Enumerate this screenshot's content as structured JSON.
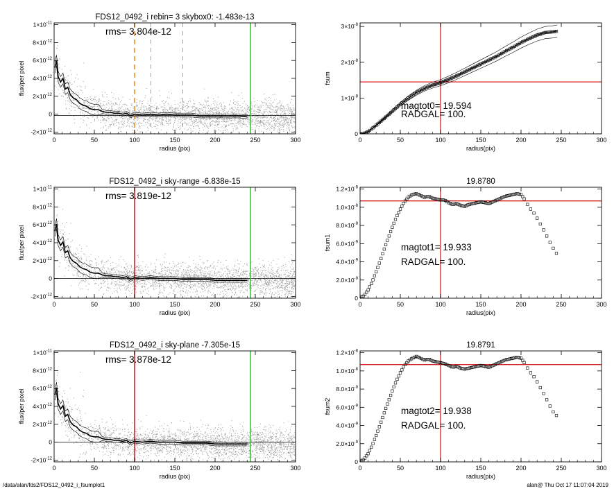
{
  "footer": {
    "path": "/data/alan/fds2/FDS12_0492_i_fsumplot1",
    "stamp": "alan@  Thu Oct 17 11:07:04 2019"
  },
  "colors": {
    "background": "#ffffff",
    "scatter": "#9a9a9a",
    "profile": "#000000",
    "orange_marker": "#f28c28",
    "red_marker": "#d42020",
    "green_marker": "#33cc33"
  },
  "chart_data": [
    {
      "type": "scatter",
      "title": "FDS12_0492_i rebin= 3    skybox0: -1.483e-13",
      "annotation": "rms= 3.804e-12",
      "xlabel": "radius (pix)",
      "ylabel": "flux/per pixel",
      "xlim": [
        0,
        300
      ],
      "ylim": [
        -2.2e-12,
        1.02e-11
      ],
      "xticks": [
        0,
        50,
        100,
        150,
        200,
        250,
        300
      ],
      "yticks": [
        {
          "v": 1e-11,
          "label": "1×10-11"
        },
        {
          "v": 8e-12,
          "label": "8×10-12"
        },
        {
          "v": 6e-12,
          "label": "6×10-12"
        },
        {
          "v": 4e-12,
          "label": "4×10-12"
        },
        {
          "v": 2e-12,
          "label": "2×10-12"
        },
        {
          "v": 0,
          "label": "0"
        },
        {
          "v": -2e-12,
          "label": "-2×10-12"
        }
      ],
      "baseline": -1.483e-13,
      "vlines": [
        {
          "x": 100,
          "color": "orange",
          "style": "dashed"
        },
        {
          "x": 120,
          "color": "gray",
          "style": "dashed"
        },
        {
          "x": 160,
          "color": "gray",
          "style": "dashed"
        },
        {
          "x": 244,
          "color": "green",
          "style": "solid"
        }
      ],
      "profile": {
        "x": [
          1,
          3,
          5,
          8,
          11,
          14,
          17,
          20,
          24,
          28,
          32,
          36,
          40,
          45,
          50,
          55,
          60,
          65,
          70,
          75,
          80,
          85,
          90,
          95,
          100,
          110,
          120,
          130,
          140,
          150,
          160,
          170,
          180,
          190,
          200,
          210,
          220,
          230,
          240
        ],
        "y": [
          5.2e-12,
          6e-12,
          4.2e-12,
          3.6e-12,
          4e-12,
          2.8e-12,
          3e-12,
          2.2e-12,
          1.8e-12,
          1.6e-12,
          1.2e-12,
          1e-12,
          9e-13,
          6e-13,
          5e-13,
          5e-13,
          3e-13,
          2e-13,
          2e-13,
          1e-13,
          1e-13,
          0,
          1e-13,
          -2e-13,
          0,
          -1e-13,
          0,
          -1e-13,
          0,
          -1e-13,
          -1e-13,
          -1e-13,
          -2e-13,
          -2e-13,
          -2e-13,
          -2e-13,
          -2e-13,
          -2e-13,
          -3e-13
        ]
      }
    },
    {
      "type": "line",
      "title": "",
      "annotation_lines": [
        "magtot0=  19.594",
        "RADGAL=    100."
      ],
      "xlabel": "radius(pix)",
      "ylabel": "fsum",
      "xlim": [
        0,
        300
      ],
      "ylim": [
        0,
        3.1e-08
      ],
      "xticks": [
        0,
        50,
        100,
        150,
        200,
        250,
        300
      ],
      "yticks": [
        {
          "v": 3e-08,
          "label": "3×10-8"
        },
        {
          "v": 2e-08,
          "label": "2×10-8"
        },
        {
          "v": 1e-08,
          "label": "1×10-8"
        },
        {
          "v": 0,
          "label": "0"
        }
      ],
      "hline": 1.45e-08,
      "vline": 100,
      "envelope": 0.06,
      "curve": {
        "x": [
          0,
          5,
          10,
          20,
          30,
          40,
          50,
          60,
          70,
          80,
          90,
          100,
          110,
          120,
          130,
          140,
          150,
          160,
          170,
          180,
          190,
          200,
          210,
          220,
          230,
          240,
          245
        ],
        "y": [
          0,
          1.5e-10,
          6e-10,
          2.4e-09,
          4.3e-09,
          6.3e-09,
          8.3e-09,
          1e-08,
          1.15e-08,
          1.27e-08,
          1.36e-08,
          1.43e-08,
          1.52e-08,
          1.62e-08,
          1.73e-08,
          1.84e-08,
          1.95e-08,
          2.06e-08,
          2.17e-08,
          2.3e-08,
          2.42e-08,
          2.55e-08,
          2.66e-08,
          2.76e-08,
          2.83e-08,
          2.85e-08,
          2.87e-08
        ]
      }
    },
    {
      "type": "scatter",
      "title": "FDS12_0492_i sky-range -6.838e-15",
      "annotation": "rms= 3.819e-12",
      "xlabel": "radius (pix)",
      "ylabel": "flux/per pixel",
      "xlim": [
        0,
        300
      ],
      "ylim": [
        -2.2e-12,
        1.02e-11
      ],
      "xticks": [
        0,
        50,
        100,
        150,
        200,
        250,
        300
      ],
      "yticks": [
        {
          "v": 1e-11,
          "label": "1×10-11"
        },
        {
          "v": 8e-12,
          "label": "8×10-12"
        },
        {
          "v": 6e-12,
          "label": "6×10-12"
        },
        {
          "v": 4e-12,
          "label": "4×10-12"
        },
        {
          "v": 2e-12,
          "label": "2×10-12"
        },
        {
          "v": 0,
          "label": "0"
        },
        {
          "v": -2e-12,
          "label": "-2×10-12"
        }
      ],
      "baseline": 0,
      "vlines": [
        {
          "x": 100,
          "color": "red",
          "style": "solid"
        },
        {
          "x": 244,
          "color": "green",
          "style": "solid"
        }
      ],
      "profile": {
        "x": [
          1,
          3,
          5,
          8,
          11,
          14,
          17,
          20,
          24,
          28,
          32,
          36,
          40,
          45,
          50,
          55,
          60,
          65,
          70,
          75,
          80,
          85,
          90,
          95,
          100,
          110,
          120,
          130,
          140,
          150,
          160,
          170,
          180,
          190,
          200,
          210,
          220,
          230,
          240
        ],
        "y": [
          5.3e-12,
          6.1e-12,
          4.3e-12,
          3.7e-12,
          4.1e-12,
          2.9e-12,
          3.1e-12,
          2.3e-12,
          1.9e-12,
          1.7e-12,
          1.3e-12,
          1.1e-12,
          1e-12,
          7e-13,
          6e-13,
          6e-13,
          4e-13,
          3e-13,
          3e-13,
          2e-13,
          2e-13,
          1e-13,
          2e-13,
          -1e-13,
          1e-13,
          0,
          1e-13,
          0,
          0,
          0,
          -1e-13,
          -1e-13,
          -1e-13,
          -1e-13,
          -2e-13,
          -2e-13,
          -2e-13,
          -2e-13,
          -2e-13
        ]
      }
    },
    {
      "type": "scatter",
      "title": "19.8780",
      "annotation_lines": [
        "magtot1=  19.933",
        "RADGAL=    100."
      ],
      "xlabel": "radius(pix)",
      "ylabel": "fsum1",
      "xlim": [
        0,
        300
      ],
      "ylim": [
        0,
        1.22e-08
      ],
      "xticks": [
        0,
        50,
        100,
        150,
        200,
        250,
        300
      ],
      "yticks": [
        {
          "v": 1.2e-08,
          "label": "1.2×10-8"
        },
        {
          "v": 1e-08,
          "label": "1.0×10-8"
        },
        {
          "v": 8e-09,
          "label": "8.0×10-9"
        },
        {
          "v": 6e-09,
          "label": "6.0×10-9"
        },
        {
          "v": 4e-09,
          "label": "4.0×10-9"
        },
        {
          "v": 2e-09,
          "label": "2.0×10-9"
        },
        {
          "v": 0,
          "label": "0"
        }
      ],
      "hline": 1.07e-08,
      "vline": 100,
      "curve": {
        "x": [
          0,
          5,
          10,
          15,
          20,
          25,
          30,
          35,
          40,
          45,
          50,
          55,
          60,
          65,
          70,
          75,
          80,
          85,
          90,
          95,
          100,
          105,
          110,
          115,
          120,
          125,
          130,
          135,
          140,
          145,
          150,
          155,
          160,
          165,
          170,
          175,
          180,
          185,
          190,
          195,
          200,
          205,
          210,
          215,
          220,
          225,
          230,
          235,
          240,
          245
        ],
        "y": [
          0,
          3e-10,
          9e-10,
          1.8e-09,
          2.9e-09,
          4.1e-09,
          5.4e-09,
          6.6e-09,
          7.8e-09,
          8.9e-09,
          9.8e-09,
          1.06e-08,
          1.11e-08,
          1.14e-08,
          1.15e-08,
          1.13e-08,
          1.11e-08,
          1.12e-08,
          1.1e-08,
          1.09e-08,
          1.08e-08,
          1.08e-08,
          1.05e-08,
          1.03e-08,
          1.04e-08,
          1.02e-08,
          1.01e-08,
          1.03e-08,
          1.04e-08,
          1.05e-08,
          1.06e-08,
          1.05e-08,
          1.04e-08,
          1.06e-08,
          1.08e-08,
          1.1e-08,
          1.12e-08,
          1.13e-08,
          1.14e-08,
          1.15e-08,
          1.14e-08,
          1.08e-08,
          1e-08,
          9.5e-09,
          8.8e-09,
          8e-09,
          7.2e-09,
          6.3e-09,
          5.5e-09,
          4.8e-09
        ]
      }
    },
    {
      "type": "scatter",
      "title": "FDS12_0492_i sky-plane -7.305e-15",
      "annotation": "rms= 3.878e-12",
      "xlabel": "radius (pix)",
      "ylabel": "flux/per pixel",
      "xlim": [
        0,
        300
      ],
      "ylim": [
        -2.2e-12,
        1.02e-11
      ],
      "xticks": [
        0,
        50,
        100,
        150,
        200,
        250,
        300
      ],
      "yticks": [
        {
          "v": 1e-11,
          "label": "1×10-11"
        },
        {
          "v": 8e-12,
          "label": "8×10-12"
        },
        {
          "v": 6e-12,
          "label": "6×10-12"
        },
        {
          "v": 4e-12,
          "label": "4×10-12"
        },
        {
          "v": 2e-12,
          "label": "2×10-12"
        },
        {
          "v": 0,
          "label": "0"
        },
        {
          "v": -2e-12,
          "label": "-2×10-12"
        }
      ],
      "baseline": 0,
      "vlines": [
        {
          "x": 100,
          "color": "red",
          "style": "solid"
        },
        {
          "x": 244,
          "color": "green",
          "style": "solid"
        }
      ],
      "profile": {
        "x": [
          1,
          3,
          5,
          8,
          11,
          14,
          17,
          20,
          24,
          28,
          32,
          36,
          40,
          45,
          50,
          55,
          60,
          65,
          70,
          75,
          80,
          85,
          90,
          95,
          100,
          110,
          120,
          130,
          140,
          150,
          160,
          170,
          180,
          190,
          200,
          210,
          220,
          230,
          240
        ],
        "y": [
          5.3e-12,
          6.1e-12,
          4.3e-12,
          3.7e-12,
          4.1e-12,
          2.9e-12,
          3.1e-12,
          2.3e-12,
          1.9e-12,
          1.7e-12,
          1.3e-12,
          1.1e-12,
          1e-12,
          7e-13,
          6e-13,
          6e-13,
          4e-13,
          3e-13,
          3e-13,
          2e-13,
          2e-13,
          1e-13,
          2e-13,
          -1e-13,
          1e-13,
          0,
          1e-13,
          0,
          0,
          0,
          -1e-13,
          -1e-13,
          -1e-13,
          -1e-13,
          -2e-13,
          -2e-13,
          -2e-13,
          -2e-13,
          -2e-13
        ]
      }
    },
    {
      "type": "scatter",
      "title": "19.8791",
      "annotation_lines": [
        "magtot2=  19.938",
        "RADGAL=    100."
      ],
      "xlabel": "radius(pix)",
      "ylabel": "fsum2",
      "xlim": [
        0,
        300
      ],
      "ylim": [
        0,
        1.22e-08
      ],
      "xticks": [
        0,
        50,
        100,
        150,
        200,
        250,
        300
      ],
      "yticks": [
        {
          "v": 1.2e-08,
          "label": "1.2×10-8"
        },
        {
          "v": 1e-08,
          "label": "1.0×10-8"
        },
        {
          "v": 8e-09,
          "label": "8.0×10-9"
        },
        {
          "v": 6e-09,
          "label": "6.0×10-9"
        },
        {
          "v": 4e-09,
          "label": "4.0×10-9"
        },
        {
          "v": 2e-09,
          "label": "2.0×10-9"
        },
        {
          "v": 0,
          "label": "0"
        }
      ],
      "hline": 1.07e-08,
      "vline": 100,
      "curve": {
        "x": [
          0,
          5,
          10,
          15,
          20,
          25,
          30,
          35,
          40,
          45,
          50,
          55,
          60,
          65,
          70,
          75,
          80,
          85,
          90,
          95,
          100,
          105,
          110,
          115,
          120,
          125,
          130,
          135,
          140,
          145,
          150,
          155,
          160,
          165,
          170,
          175,
          180,
          185,
          190,
          195,
          200,
          205,
          210,
          215,
          220,
          225,
          230,
          235,
          240,
          245
        ],
        "y": [
          0,
          3e-10,
          9e-10,
          1.8e-09,
          2.9e-09,
          4.1e-09,
          5.4e-09,
          6.6e-09,
          7.8e-09,
          8.9e-09,
          9.8e-09,
          1.06e-08,
          1.11e-08,
          1.14e-08,
          1.16e-08,
          1.14e-08,
          1.12e-08,
          1.13e-08,
          1.11e-08,
          1.1e-08,
          1.09e-08,
          1.08e-08,
          1.06e-08,
          1.04e-08,
          1.05e-08,
          1.03e-08,
          1.02e-08,
          1.03e-08,
          1.04e-08,
          1.05e-08,
          1.06e-08,
          1.05e-08,
          1.04e-08,
          1.06e-08,
          1.08e-08,
          1.1e-08,
          1.12e-08,
          1.13e-08,
          1.14e-08,
          1.15e-08,
          1.14e-08,
          1.08e-08,
          1e-08,
          9.5e-09,
          8.8e-09,
          8e-09,
          7.2e-09,
          6.3e-09,
          5.5e-09,
          5e-09
        ]
      }
    }
  ]
}
